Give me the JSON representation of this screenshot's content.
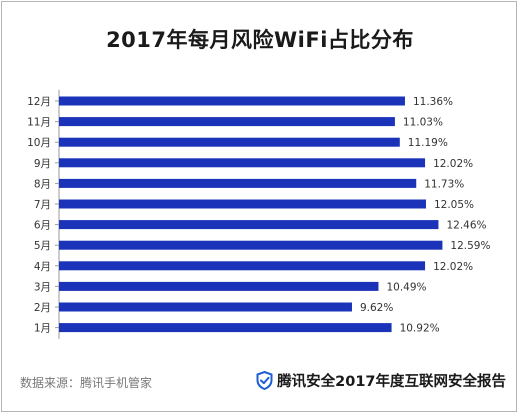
{
  "chart_data": {
    "type": "bar",
    "orientation": "horizontal",
    "title": "2017年每月风险WiFi占比分布",
    "categories": [
      "12月",
      "11月",
      "10月",
      "9月",
      "8月",
      "7月",
      "6月",
      "5月",
      "4月",
      "3月",
      "2月",
      "1月"
    ],
    "values": [
      11.36,
      11.03,
      11.19,
      12.02,
      11.73,
      12.05,
      12.46,
      12.59,
      12.02,
      10.49,
      9.62,
      10.92
    ],
    "value_labels": [
      "11.36%",
      "11.03%",
      "11.19%",
      "12.02%",
      "11.73%",
      "12.05%",
      "12.46%",
      "12.59%",
      "12.02%",
      "10.49%",
      "9.62%",
      "10.92%"
    ],
    "unit": "%",
    "xlim": [
      0,
      13.2
    ],
    "bar_color": "#1a33b8",
    "grid": false
  },
  "footer": {
    "source": "数据来源：腾讯手机管家",
    "brand": "腾讯安全2017年度互联网安全报告",
    "brand_icon": "shield-icon",
    "brand_color": "#1f5fd6"
  }
}
